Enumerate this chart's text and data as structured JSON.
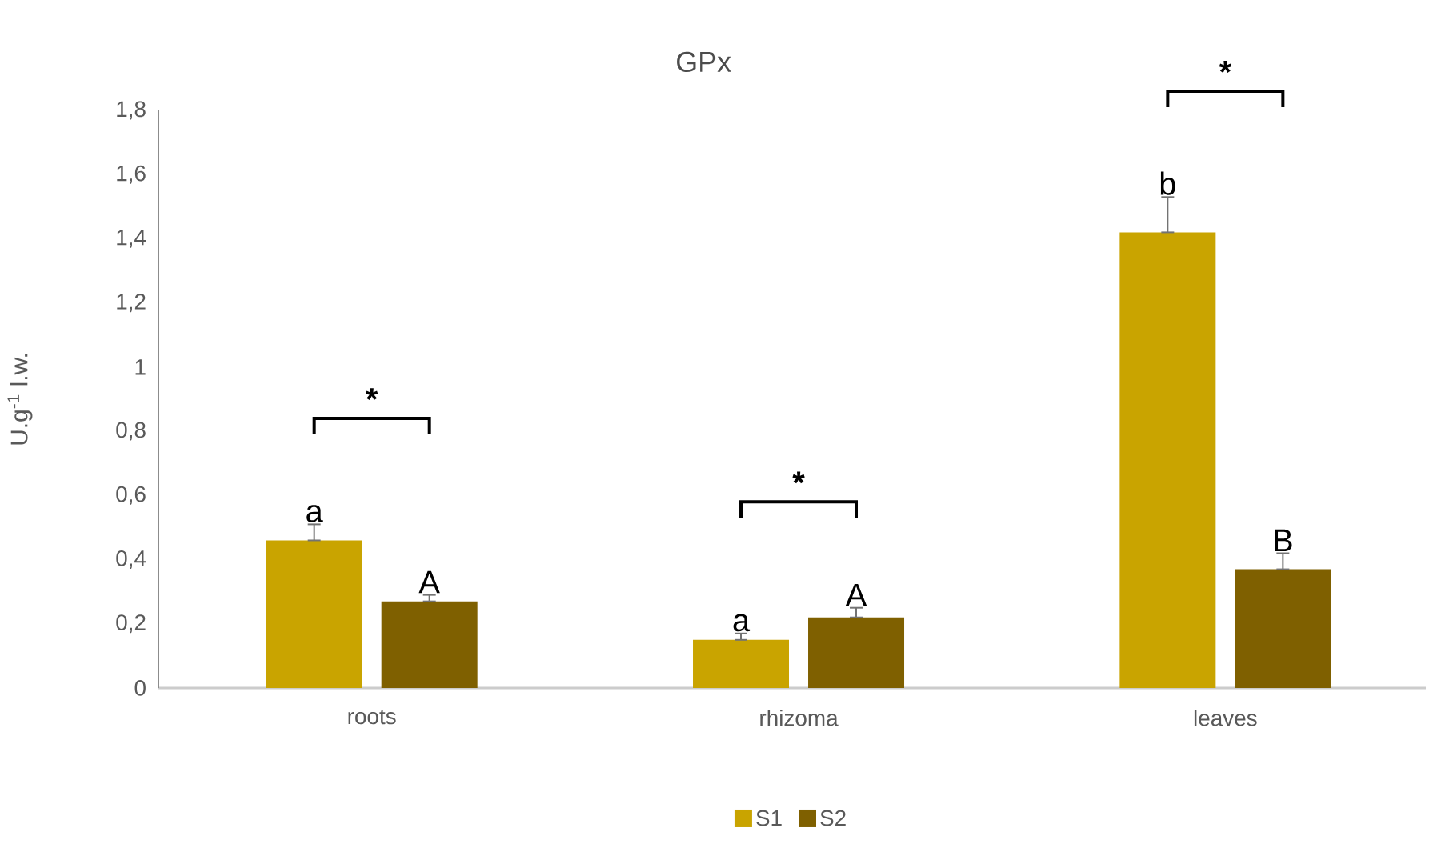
{
  "chart_data": {
    "type": "bar",
    "title": "GPx",
    "ylabel": "U.g$^{-1}$ l.w.",
    "categories": [
      "roots",
      "rhizoma",
      "leaves"
    ],
    "series": [
      {
        "name": "S1",
        "color": "#c9a400",
        "values": [
          0.46,
          0.15,
          1.42
        ],
        "errors": [
          [
            0.46,
            0.51
          ],
          [
            0.15,
            0.17
          ],
          [
            1.42,
            1.53
          ]
        ],
        "value_labels": [
          "a",
          "a",
          "b"
        ]
      },
      {
        "name": "S2",
        "color": "#7f6000",
        "values": [
          0.27,
          0.22,
          0.37
        ],
        "errors": [
          [
            0.27,
            0.29
          ],
          [
            0.22,
            0.25
          ],
          [
            0.37,
            0.42
          ]
        ],
        "value_labels": [
          "A",
          "A",
          "B"
        ]
      }
    ],
    "annotations": [
      "*",
      "*",
      "*"
    ],
    "ylim": [
      0,
      1.8
    ],
    "yticks": [
      0,
      {
        "value": 0.2,
        "label": "0,2"
      },
      {
        "value": 0.4,
        "label": "0,4"
      },
      {
        "value": 0.6,
        "label": "0,6"
      },
      {
        "value": 0.8,
        "label": "0,8"
      },
      1,
      {
        "value": 1.2,
        "label": "1,2"
      },
      {
        "value": 1.4,
        "label": "1,4"
      },
      {
        "value": 1.6,
        "label": "1,6"
      },
      {
        "value": 1.8,
        "label": "1,8"
      }
    ],
    "legend": "bottom"
  }
}
